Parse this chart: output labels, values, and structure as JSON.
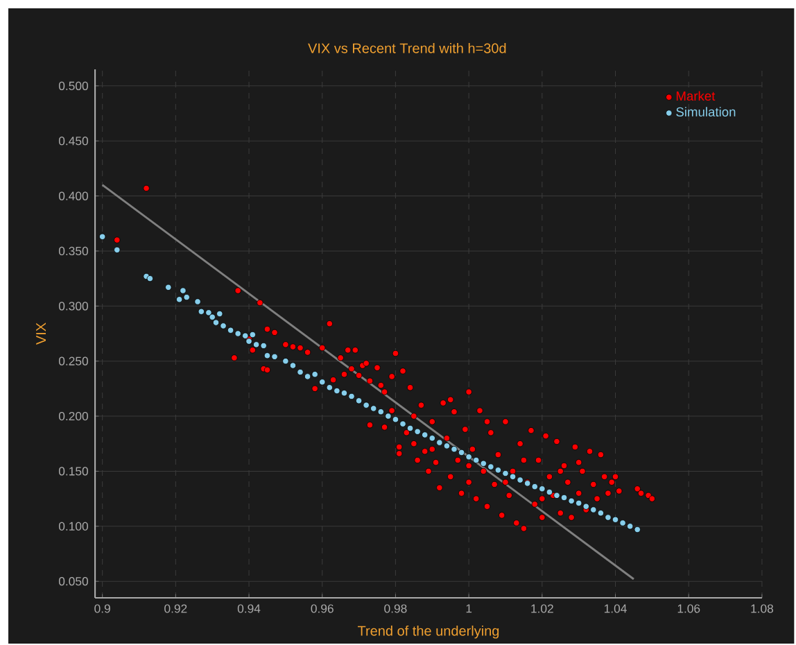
{
  "chart_data": {
    "type": "scatter",
    "title": "VIX vs Recent Trend with h=30d",
    "xlabel": "Trend of the underlying",
    "ylabel": "VIX",
    "xlim": [
      0.898,
      1.08
    ],
    "ylim": [
      0.035,
      0.515
    ],
    "xticks": [
      0.9,
      0.92,
      0.94,
      0.96,
      0.98,
      1,
      1.02,
      1.04,
      1.06,
      1.08
    ],
    "yticks": [
      {
        "value": 0.05,
        "label": "0.050"
      },
      {
        "value": 0.1,
        "label": "0.100"
      },
      {
        "value": 0.15,
        "label": "0.150"
      },
      {
        "value": 0.2,
        "label": "0.200"
      },
      {
        "value": 0.25,
        "label": "0.250"
      },
      {
        "value": 0.3,
        "label": "0.300"
      },
      {
        "value": 0.35,
        "label": "0.350"
      },
      {
        "value": 0.4,
        "label": "0.400"
      },
      {
        "value": 0.45,
        "label": "0.450"
      },
      {
        "value": 0.5,
        "label": "0.500"
      }
    ],
    "grid": true,
    "legend": "top right",
    "series": [
      {
        "name": "Market",
        "marker": "circle",
        "color": "#ff0000",
        "x": [
          0.912,
          0.904,
          0.937,
          0.943,
          0.962,
          0.945,
          0.947,
          0.936,
          0.94,
          0.941,
          0.944,
          0.945,
          0.95,
          0.952,
          0.954,
          0.956,
          0.958,
          0.96,
          0.963,
          0.965,
          0.966,
          0.967,
          0.968,
          0.969,
          0.97,
          0.971,
          0.972,
          0.973,
          0.975,
          0.976,
          0.977,
          0.979,
          0.98,
          0.982,
          0.984,
          0.973,
          0.977,
          0.979,
          0.981,
          0.981,
          0.983,
          0.985,
          0.986,
          0.987,
          0.988,
          0.989,
          0.99,
          0.991,
          0.992,
          0.993,
          0.994,
          0.995,
          0.996,
          0.997,
          0.998,
          0.999,
          1.0,
          1.0,
          1.001,
          1.002,
          1.003,
          1.004,
          1.005,
          1.006,
          1.007,
          1.008,
          1.009,
          1.01,
          1.011,
          1.012,
          1.013,
          1.014,
          1.015,
          1.016,
          1.017,
          1.018,
          1.019,
          1.02,
          1.021,
          1.022,
          1.023,
          1.024,
          1.025,
          1.026,
          1.027,
          1.028,
          1.029,
          1.03,
          1.031,
          1.032,
          1.033,
          1.034,
          1.035,
          1.036,
          1.037,
          1.038,
          1.039,
          1.04,
          1.041,
          1.046,
          1.047,
          1.049,
          1.05,
          0.995,
          1.005,
          1.015,
          1.025,
          0.985,
          1.01,
          1.02,
          0.99,
          1.0,
          1.03
        ],
        "values": [
          0.407,
          0.36,
          0.314,
          0.303,
          0.284,
          0.279,
          0.276,
          0.253,
          0.27,
          0.26,
          0.243,
          0.242,
          0.265,
          0.263,
          0.262,
          0.258,
          0.225,
          0.262,
          0.233,
          0.253,
          0.238,
          0.26,
          0.243,
          0.26,
          0.237,
          0.246,
          0.248,
          0.232,
          0.244,
          0.228,
          0.222,
          0.236,
          0.257,
          0.241,
          0.226,
          0.192,
          0.19,
          0.205,
          0.172,
          0.166,
          0.185,
          0.175,
          0.16,
          0.21,
          0.168,
          0.15,
          0.195,
          0.158,
          0.135,
          0.212,
          0.18,
          0.145,
          0.204,
          0.16,
          0.13,
          0.188,
          0.222,
          0.14,
          0.17,
          0.125,
          0.205,
          0.15,
          0.118,
          0.185,
          0.138,
          0.165,
          0.11,
          0.195,
          0.128,
          0.15,
          0.103,
          0.175,
          0.098,
          0.14,
          0.187,
          0.12,
          0.16,
          0.108,
          0.182,
          0.145,
          0.128,
          0.177,
          0.112,
          0.155,
          0.14,
          0.108,
          0.172,
          0.13,
          0.15,
          0.115,
          0.168,
          0.138,
          0.125,
          0.165,
          0.145,
          0.13,
          0.14,
          0.145,
          0.132,
          0.134,
          0.13,
          0.128,
          0.125,
          0.215,
          0.195,
          0.16,
          0.15,
          0.2,
          0.14,
          0.125,
          0.17,
          0.155,
          0.158
        ]
      },
      {
        "name": "Simulation",
        "marker": "circle",
        "color": "#87ceeb",
        "x": [
          0.9,
          0.904,
          0.912,
          0.913,
          0.918,
          0.921,
          0.922,
          0.923,
          0.926,
          0.927,
          0.929,
          0.93,
          0.931,
          0.932,
          0.933,
          0.935,
          0.937,
          0.939,
          0.94,
          0.941,
          0.942,
          0.944,
          0.945,
          0.947,
          0.95,
          0.952,
          0.954,
          0.956,
          0.958,
          0.96,
          0.962,
          0.964,
          0.966,
          0.968,
          0.97,
          0.972,
          0.974,
          0.976,
          0.978,
          0.98,
          0.982,
          0.984,
          0.986,
          0.988,
          0.99,
          0.992,
          0.994,
          0.996,
          0.998,
          1.0,
          1.002,
          1.004,
          1.006,
          1.008,
          1.01,
          1.012,
          1.014,
          1.016,
          1.018,
          1.02,
          1.022,
          1.024,
          1.026,
          1.028,
          1.03,
          1.032,
          1.034,
          1.036,
          1.038,
          1.04,
          1.042,
          1.044,
          1.046
        ],
        "values": [
          0.363,
          0.351,
          0.327,
          0.325,
          0.317,
          0.306,
          0.314,
          0.308,
          0.304,
          0.295,
          0.294,
          0.29,
          0.285,
          0.293,
          0.282,
          0.278,
          0.275,
          0.273,
          0.268,
          0.274,
          0.265,
          0.264,
          0.255,
          0.254,
          0.25,
          0.246,
          0.24,
          0.236,
          0.238,
          0.231,
          0.226,
          0.223,
          0.221,
          0.218,
          0.214,
          0.21,
          0.207,
          0.204,
          0.2,
          0.197,
          0.193,
          0.189,
          0.186,
          0.183,
          0.18,
          0.176,
          0.173,
          0.17,
          0.167,
          0.163,
          0.16,
          0.157,
          0.154,
          0.151,
          0.148,
          0.145,
          0.142,
          0.139,
          0.136,
          0.134,
          0.131,
          0.128,
          0.126,
          0.123,
          0.121,
          0.118,
          0.115,
          0.112,
          0.108,
          0.106,
          0.103,
          0.1,
          0.097
        ]
      },
      {
        "type": "line",
        "marker": "none",
        "color": "#808080",
        "x": [
          0.9,
          1.045
        ],
        "values": [
          0.41,
          0.052
        ]
      }
    ]
  }
}
